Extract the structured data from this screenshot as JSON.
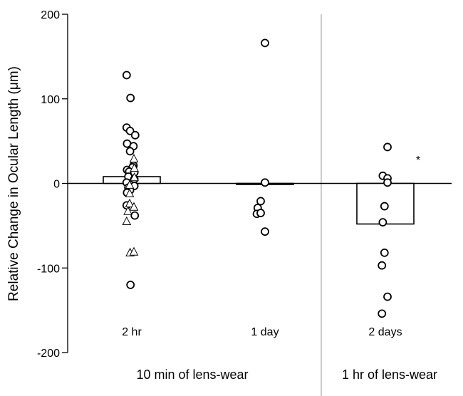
{
  "chart_data": {
    "type": "scatter",
    "ylabel": "Relative Change in Ocular Length (μm)",
    "ylim": [
      -200,
      200
    ],
    "yticks": [
      -200,
      -100,
      0,
      100,
      200
    ],
    "categories": [
      "2 hr",
      "1 day",
      "2 days"
    ],
    "groups": [
      "10 min of lens-wear",
      "1 hr of lens-wear"
    ],
    "bars": [
      8,
      -1,
      -48
    ],
    "annotation": "*",
    "series": [
      {
        "marker": "circle",
        "points": [
          {
            "cat": 0,
            "dx": -0.6,
            "y": 128
          },
          {
            "cat": 0,
            "dx": -0.15,
            "y": 101
          },
          {
            "cat": 0,
            "dx": -0.6,
            "y": 66
          },
          {
            "cat": 0,
            "dx": -0.2,
            "y": 62
          },
          {
            "cat": 0,
            "dx": 0.4,
            "y": 57
          },
          {
            "cat": 0,
            "dx": -0.55,
            "y": 47
          },
          {
            "cat": 0,
            "dx": 0.2,
            "y": 44
          },
          {
            "cat": 0,
            "dx": -0.2,
            "y": 38
          },
          {
            "cat": 0,
            "dx": 0.2,
            "y": 21
          },
          {
            "cat": 0,
            "dx": 0.1,
            "y": 19
          },
          {
            "cat": 0,
            "dx": -0.55,
            "y": 16
          },
          {
            "cat": 0,
            "dx": -0.3,
            "y": 14
          },
          {
            "cat": 0,
            "dx": 0.3,
            "y": 13
          },
          {
            "cat": 0,
            "dx": -0.4,
            "y": 8
          },
          {
            "cat": 0,
            "dx": 0.3,
            "y": 5
          },
          {
            "cat": 0,
            "dx": -0.6,
            "y": 1
          },
          {
            "cat": 0,
            "dx": 0.3,
            "y": -3
          },
          {
            "cat": 0,
            "dx": -0.4,
            "y": -5
          },
          {
            "cat": 0,
            "dx": -0.2,
            "y": -8
          },
          {
            "cat": 0,
            "dx": -0.55,
            "y": -11
          },
          {
            "cat": 0,
            "dx": -0.6,
            "y": -26
          },
          {
            "cat": 0,
            "dx": 0.35,
            "y": -38
          },
          {
            "cat": 0,
            "dx": -0.15,
            "y": -120
          },
          {
            "cat": 1,
            "dx": 0.0,
            "y": 166
          },
          {
            "cat": 1,
            "dx": 0.0,
            "y": 1
          },
          {
            "cat": 1,
            "dx": -0.5,
            "y": -21
          },
          {
            "cat": 1,
            "dx": -0.85,
            "y": -29
          },
          {
            "cat": 1,
            "dx": -0.95,
            "y": -36
          },
          {
            "cat": 1,
            "dx": -0.5,
            "y": -35
          },
          {
            "cat": 1,
            "dx": 0.0,
            "y": -57
          },
          {
            "cat": 2,
            "dx": 0.25,
            "y": 43
          },
          {
            "cat": 2,
            "dx": -0.3,
            "y": 9
          },
          {
            "cat": 2,
            "dx": 0.25,
            "y": 6
          },
          {
            "cat": 2,
            "dx": 0.25,
            "y": 1
          },
          {
            "cat": 2,
            "dx": -0.1,
            "y": -27
          },
          {
            "cat": 2,
            "dx": -0.3,
            "y": -46
          },
          {
            "cat": 2,
            "dx": -0.1,
            "y": -82
          },
          {
            "cat": 2,
            "dx": -0.4,
            "y": -97
          },
          {
            "cat": 2,
            "dx": 0.25,
            "y": -134
          },
          {
            "cat": 2,
            "dx": -0.4,
            "y": -154
          }
        ]
      },
      {
        "marker": "triangle",
        "points": [
          {
            "cat": 0,
            "dx": 0.25,
            "y": 29
          },
          {
            "cat": 0,
            "dx": 0.3,
            "y": 18
          },
          {
            "cat": 0,
            "dx": 0.3,
            "y": 7
          },
          {
            "cat": 0,
            "dx": -0.25,
            "y": -2
          },
          {
            "cat": 0,
            "dx": -0.25,
            "y": -12
          },
          {
            "cat": 0,
            "dx": -0.25,
            "y": -24
          },
          {
            "cat": 0,
            "dx": 0.25,
            "y": -28
          },
          {
            "cat": 0,
            "dx": -0.45,
            "y": -33
          },
          {
            "cat": 0,
            "dx": -0.6,
            "y": -45
          },
          {
            "cat": 0,
            "dx": -0.2,
            "y": -82
          },
          {
            "cat": 0,
            "dx": 0.25,
            "y": -81
          }
        ]
      }
    ]
  }
}
